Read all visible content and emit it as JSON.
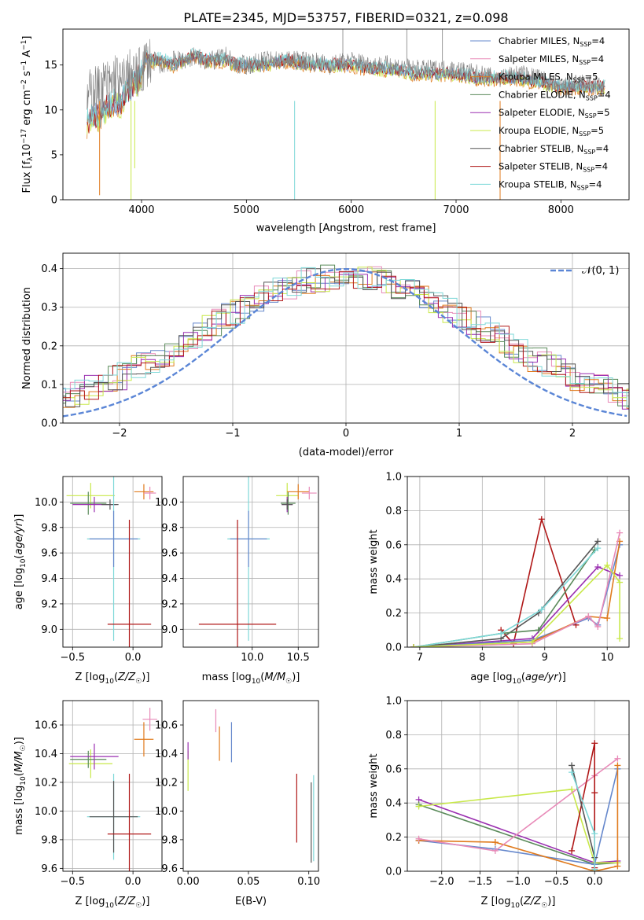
{
  "title": "PLATE=2345, MJD=53757, FIBERID=0321, z=0.098",
  "colors": {
    "chabrier_miles": "#6688cc",
    "salpeter_miles": "#e88ab8",
    "kroupa_miles": "#e07b1e",
    "chabrier_elodie": "#5a8a5a",
    "salpeter_elodie": "#9a2fb0",
    "kroupa_elodie": "#c8e84a",
    "chabrier_stelib": "#555555",
    "salpeter_stelib": "#b01818",
    "kroupa_stelib": "#7ed8d8",
    "normal_curve": "#5b86d6",
    "spectrum_gray": "#808080"
  },
  "chart_data": [
    {
      "id": "spectrum",
      "type": "line",
      "xlabel": "wavelength [Angstrom, rest frame]",
      "ylabel_parts": [
        "Flux [f",
        "λ",
        "10",
        "−17",
        " erg cm",
        "−2",
        " s",
        "−1",
        " A",
        "−1",
        "]"
      ],
      "xlim": [
        3250,
        8650
      ],
      "ylim": [
        0,
        19
      ],
      "xticks": [
        4000,
        5000,
        6000,
        7000,
        8000
      ],
      "yticks": [
        0,
        5,
        10,
        15
      ],
      "grid": false,
      "legend_position": "top-right",
      "legend": [
        {
          "base": "Chabrier MILES, N",
          "n": "4",
          "color_key": "chabrier_miles"
        },
        {
          "base": "Salpeter MILES, N",
          "n": "4",
          "color_key": "salpeter_miles"
        },
        {
          "base": "Kroupa MILES, N",
          "n": "5",
          "color_key": "kroupa_miles"
        },
        {
          "base": "Chabrier ELODIE, N",
          "n": "4",
          "color_key": "chabrier_elodie"
        },
        {
          "base": "Salpeter ELODIE, N",
          "n": "5",
          "color_key": "salpeter_elodie"
        },
        {
          "base": "Kroupa ELODIE, N",
          "n": "5",
          "color_key": "kroupa_elodie"
        },
        {
          "base": "Chabrier STELIB, N",
          "n": "4",
          "color_key": "chabrier_stelib"
        },
        {
          "base": "Salpeter STELIB, N",
          "n": "4",
          "color_key": "salpeter_stelib"
        },
        {
          "base": "Kroupa STELIB, N",
          "n": "4",
          "color_key": "kroupa_stelib"
        }
      ],
      "legend_sub": "SSP",
      "series": [
        {
          "name": "data",
          "color_key": "spectrum_gray",
          "x": [
            3500,
            3550,
            3600,
            3650,
            3700,
            3750,
            3800,
            3850,
            3900,
            3950,
            4000,
            4050,
            4100,
            4200,
            4300,
            4400,
            4500,
            4600,
            4700,
            4800,
            4900,
            5000,
            5200,
            5400,
            5600,
            5800,
            6000,
            6200,
            6400,
            6600,
            6800,
            7000,
            7200,
            7400,
            7600,
            7800,
            8000,
            8200,
            8400
          ],
          "y": [
            11.5,
            12.5,
            12.0,
            13.0,
            12.5,
            14.0,
            12.5,
            13.5,
            14.0,
            13.5,
            14.5,
            15.5,
            15.5,
            15.0,
            15.5,
            15.5,
            16.0,
            15.5,
            15.5,
            16.0,
            15.0,
            15.0,
            15.5,
            15.5,
            15.5,
            15.0,
            15.5,
            15.0,
            15.0,
            14.5,
            14.5,
            14.5,
            14.0,
            13.5,
            14.0,
            13.5,
            12.5,
            13.0,
            12.5
          ]
        },
        {
          "name": "model",
          "color_key": "kroupa_stelib",
          "x": [
            3500,
            3550,
            3600,
            3650,
            3700,
            3750,
            3800,
            3850,
            3900,
            3950,
            4000,
            4050,
            4100,
            4200,
            4300,
            4400,
            4500,
            4600,
            4700,
            4800,
            4900,
            5000,
            5200,
            5400,
            5600,
            5800,
            6000,
            6200,
            6400,
            6600,
            6800,
            7000,
            7200,
            7400,
            7600,
            7800,
            8000,
            8200,
            8400
          ],
          "y": [
            8.5,
            9.5,
            9.0,
            10.0,
            10.5,
            11.0,
            10.5,
            12.0,
            12.5,
            13.0,
            14.0,
            16.0,
            15.5,
            15.5,
            15.0,
            15.5,
            16.0,
            15.5,
            15.5,
            15.5,
            15.0,
            15.0,
            15.0,
            15.5,
            15.0,
            15.0,
            15.0,
            14.5,
            14.5,
            14.0,
            14.0,
            14.0,
            13.5,
            13.5,
            13.5,
            13.0,
            12.5,
            12.5,
            12.5
          ]
        }
      ]
    },
    {
      "id": "residuals",
      "type": "line",
      "xlabel": "(data-model)/error",
      "ylabel": "Normed distribution",
      "xlim": [
        -2.5,
        2.5
      ],
      "ylim": [
        0,
        0.44
      ],
      "xticks": [
        -2,
        -1,
        0,
        1,
        2
      ],
      "xticklabels": [
        "−2",
        "−1",
        "0",
        "1",
        "2"
      ],
      "yticks": [
        0.0,
        0.1,
        0.2,
        0.3,
        0.4
      ],
      "yticklabels": [
        "0.0",
        "0.1",
        "0.2",
        "0.3",
        "0.4"
      ],
      "grid": true,
      "legend_position": "top-right",
      "legend_label": "𝒩(0, 1)",
      "series": [
        {
          "name": "𝒩(0, 1)",
          "color_key": "normal_curve",
          "mean": 0,
          "sigma": 1
        }
      ]
    },
    {
      "id": "age_vs_Z",
      "type": "scatter",
      "xlabel": "Z [log10(Z/Z☉)]",
      "ylabel": "age [log10(age/yr)]",
      "xlim": [
        -0.58,
        0.24
      ],
      "ylim": [
        8.86,
        10.2
      ],
      "xticks": [
        -0.5,
        0.0
      ],
      "xticklabels": [
        "−0.5",
        "0.0"
      ],
      "yticks": [
        9.0,
        9.2,
        9.4,
        9.6,
        9.8,
        10.0
      ],
      "yticklabels": [
        "9.0",
        "9.2",
        "9.4",
        "9.6",
        "9.8",
        "10.0"
      ],
      "grid": true,
      "errorbars": [
        {
          "color_key": "kroupa_elodie",
          "x": -0.35,
          "y": 10.05,
          "xerr": 0.2,
          "yerr": 0.1
        },
        {
          "color_key": "chabrier_elodie",
          "x": -0.37,
          "y": 9.99,
          "xerr": 0.15,
          "yerr": 0.09
        },
        {
          "color_key": "salpeter_elodie",
          "x": -0.32,
          "y": 9.98,
          "xerr": 0.18,
          "yerr": 0.06
        },
        {
          "color_key": "chabrier_stelib",
          "x": -0.19,
          "y": 9.98,
          "xerr": 0.07,
          "yerr": 0.04
        },
        {
          "color_key": "kroupa_miles",
          "x": 0.09,
          "y": 10.08,
          "xerr": 0.08,
          "yerr": 0.06
        },
        {
          "color_key": "salpeter_miles",
          "x": 0.14,
          "y": 10.07,
          "xerr": 0.05,
          "yerr": 0.05
        },
        {
          "color_key": "kroupa_stelib",
          "x": -0.16,
          "y": 9.71,
          "xerr": 0.22,
          "yerr": 0.8
        },
        {
          "color_key": "chabrier_miles",
          "x": -0.16,
          "y": 9.71,
          "xerr": 0.2,
          "yerr": 0.22
        },
        {
          "color_key": "salpeter_stelib",
          "x": -0.03,
          "y": 9.04,
          "xerr": 0.18,
          "yerr": 0.82
        }
      ]
    },
    {
      "id": "age_vs_mass",
      "type": "scatter",
      "xlabel": "mass [log10(M/M☉)]",
      "ylabel": "",
      "xlim": [
        9.25,
        10.72
      ],
      "ylim": [
        8.86,
        10.2
      ],
      "xticks": [
        10.0,
        10.5
      ],
      "xticklabels": [
        "10.0",
        "10.5"
      ],
      "yticks": [
        9.0,
        9.2,
        9.4,
        9.6,
        9.8,
        10.0
      ],
      "yticklabels": [
        "9.0",
        "9.2",
        "9.4",
        "9.6",
        "9.8",
        "10.0"
      ],
      "grid": true,
      "errorbars": [
        {
          "color_key": "kroupa_elodie",
          "x": 10.38,
          "y": 10.05,
          "xerr": 0.12,
          "yerr": 0.1
        },
        {
          "color_key": "chabrier_elodie",
          "x": 10.39,
          "y": 9.99,
          "xerr": 0.08,
          "yerr": 0.09
        },
        {
          "color_key": "salpeter_elodie",
          "x": 10.38,
          "y": 9.98,
          "xerr": 0.06,
          "yerr": 0.06
        },
        {
          "color_key": "chabrier_stelib",
          "x": 10.38,
          "y": 9.98,
          "xerr": 0.06,
          "yerr": 0.04
        },
        {
          "color_key": "kroupa_miles",
          "x": 10.5,
          "y": 10.08,
          "xerr": 0.12,
          "yerr": 0.06
        },
        {
          "color_key": "salpeter_miles",
          "x": 10.62,
          "y": 10.07,
          "xerr": 0.08,
          "yerr": 0.05
        },
        {
          "color_key": "kroupa_stelib",
          "x": 9.96,
          "y": 9.71,
          "xerr": 0.23,
          "yerr": 0.8
        },
        {
          "color_key": "chabrier_miles",
          "x": 9.96,
          "y": 9.71,
          "xerr": 0.2,
          "yerr": 0.22
        },
        {
          "color_key": "salpeter_stelib",
          "x": 9.84,
          "y": 9.04,
          "xerr": 0.42,
          "yerr": 0.82
        }
      ]
    },
    {
      "id": "massweight_vs_age",
      "type": "line",
      "xlabel": "age [log10(age/yr)]",
      "ylabel": "mass weight",
      "xlim": [
        6.8,
        10.35
      ],
      "ylim": [
        0,
        1
      ],
      "xticks": [
        7,
        8,
        9,
        10
      ],
      "xticklabels": [
        "7",
        "8",
        "9",
        "10"
      ],
      "yticks": [
        0.0,
        0.2,
        0.4,
        0.6,
        0.8,
        1.0
      ],
      "yticklabels": [
        "0.0",
        "0.2",
        "0.4",
        "0.6",
        "0.8",
        "1.0"
      ],
      "grid": true,
      "series": [
        {
          "color_key": "salpeter_stelib",
          "x": [
            8.3,
            8.5,
            8.95,
            9.5
          ],
          "y": [
            0.1,
            0.02,
            0.75,
            0.13
          ]
        },
        {
          "color_key": "salpeter_elodie",
          "x": [
            6.9,
            8.8,
            9.85,
            10.2
          ],
          "y": [
            0.0,
            0.05,
            0.47,
            0.42
          ]
        },
        {
          "color_key": "chabrier_stelib",
          "x": [
            6.9,
            8.3,
            8.9,
            9.85
          ],
          "y": [
            0.0,
            0.05,
            0.2,
            0.62
          ]
        },
        {
          "color_key": "chabrier_elodie",
          "x": [
            6.9,
            8.3,
            8.9,
            9.8
          ],
          "y": [
            0.0,
            0.08,
            0.1,
            0.57
          ]
        },
        {
          "color_key": "kroupa_stelib",
          "x": [
            6.9,
            8.3,
            8.95,
            9.85
          ],
          "y": [
            0.0,
            0.08,
            0.22,
            0.58
          ]
        },
        {
          "color_key": "chabrier_miles",
          "x": [
            6.9,
            8.8,
            9.7,
            9.85,
            10.2
          ],
          "y": [
            0.0,
            0.04,
            0.17,
            0.13,
            0.6
          ]
        },
        {
          "color_key": "kroupa_miles",
          "x": [
            6.9,
            8.8,
            9.7,
            10.0,
            10.2
          ],
          "y": [
            0.0,
            0.03,
            0.18,
            0.17,
            0.62
          ]
        },
        {
          "color_key": "salpeter_miles",
          "x": [
            6.9,
            8.8,
            9.7,
            9.85,
            10.2
          ],
          "y": [
            0.0,
            0.02,
            0.18,
            0.12,
            0.67
          ]
        },
        {
          "color_key": "kroupa_elodie",
          "x": [
            6.9,
            8.8,
            10.0,
            10.2,
            10.2
          ],
          "y": [
            0.0,
            0.03,
            0.48,
            0.38,
            0.05
          ]
        }
      ]
    },
    {
      "id": "mass_vs_Z",
      "type": "scatter",
      "xlabel": "Z [log10(Z/Z☉)]",
      "ylabel": "mass [log10(M/M☉)]",
      "xlim": [
        -0.58,
        0.24
      ],
      "ylim": [
        9.58,
        10.77
      ],
      "xticks": [
        -0.5,
        0.0
      ],
      "xticklabels": [
        "−0.5",
        "0.0"
      ],
      "yticks": [
        9.6,
        9.8,
        10.0,
        10.2,
        10.4,
        10.6
      ],
      "yticklabels": [
        "9.6",
        "9.8",
        "10.0",
        "10.2",
        "10.4",
        "10.6"
      ],
      "grid": true,
      "errorbars": [
        {
          "color_key": "kroupa_elodie",
          "x": -0.35,
          "y": 10.33,
          "xerr": 0.18,
          "yerr": 0.1
        },
        {
          "color_key": "chabrier_elodie",
          "x": -0.37,
          "y": 10.36,
          "xerr": 0.15,
          "yerr": 0.06
        },
        {
          "color_key": "salpeter_elodie",
          "x": -0.32,
          "y": 10.38,
          "xerr": 0.2,
          "yerr": 0.09
        },
        {
          "color_key": "kroupa_miles",
          "x": 0.09,
          "y": 10.5,
          "xerr": 0.08,
          "yerr": 0.12
        },
        {
          "color_key": "salpeter_miles",
          "x": 0.14,
          "y": 10.64,
          "xerr": 0.06,
          "yerr": 0.08
        },
        {
          "color_key": "kroupa_stelib",
          "x": -0.16,
          "y": 9.96,
          "xerr": 0.22,
          "yerr": 0.3
        },
        {
          "color_key": "chabrier_stelib",
          "x": -0.16,
          "y": 9.96,
          "xerr": 0.2,
          "yerr": 0.25
        },
        {
          "color_key": "salpeter_stelib",
          "x": -0.03,
          "y": 9.84,
          "xerr": 0.18,
          "yerr": 0.42
        }
      ]
    },
    {
      "id": "mass_vs_ebv",
      "type": "scatter",
      "xlabel": "E(B-V)",
      "ylabel": "",
      "xlim": [
        -0.004,
        0.108
      ],
      "ylim": [
        9.58,
        10.77
      ],
      "xticks": [
        0.0,
        0.05,
        0.1
      ],
      "xticklabels": [
        "0.00",
        "0.05",
        "0.10"
      ],
      "yticks": [
        9.6,
        9.8,
        10.0,
        10.2,
        10.4,
        10.6
      ],
      "yticklabels": [
        "9.6",
        "9.8",
        "10.0",
        "10.2",
        "10.4",
        "10.6"
      ],
      "grid": false,
      "errorbars": [
        {
          "color_key": "kroupa_elodie",
          "x": 0.0,
          "y": 10.28,
          "xerr": 0,
          "yerr": 0.14
        },
        {
          "color_key": "salpeter_elodie",
          "x": 0.0,
          "y": 10.42,
          "xerr": 0,
          "yerr": 0.06
        },
        {
          "color_key": "salpeter_miles",
          "x": 0.023,
          "y": 10.63,
          "xerr": 0,
          "yerr": 0.08
        },
        {
          "color_key": "kroupa_miles",
          "x": 0.026,
          "y": 10.47,
          "xerr": 0,
          "yerr": 0.12
        },
        {
          "color_key": "chabrier_miles",
          "x": 0.036,
          "y": 10.48,
          "xerr": 0,
          "yerr": 0.14
        },
        {
          "color_key": "salpeter_stelib",
          "x": 0.09,
          "y": 10.02,
          "xerr": 0,
          "yerr": 0.24
        },
        {
          "color_key": "chabrier_stelib",
          "x": 0.102,
          "y": 9.92,
          "xerr": 0,
          "yerr": 0.28
        },
        {
          "color_key": "kroupa_stelib",
          "x": 0.104,
          "y": 9.95,
          "xerr": 0,
          "yerr": 0.3
        }
      ]
    },
    {
      "id": "massweight_vs_Z",
      "type": "line",
      "xlabel": "Z [log10(Z/Z☉)]",
      "ylabel": "mass weight",
      "xlim": [
        -2.45,
        0.45
      ],
      "ylim": [
        0,
        1
      ],
      "xticks": [
        -2.0,
        -1.5,
        -1.0,
        -0.5,
        0.0
      ],
      "xticklabels": [
        "−2.0",
        "−1.5",
        "−1.0",
        "−0.5",
        "0.0"
      ],
      "yticks": [
        0.0,
        0.2,
        0.4,
        0.6,
        0.8,
        1.0
      ],
      "yticklabels": [
        "0.0",
        "0.2",
        "0.4",
        "0.6",
        "0.8",
        "1.0"
      ],
      "grid": true,
      "series": [
        {
          "color_key": "salpeter_elodie",
          "x": [
            -2.3,
            0.0,
            0.3
          ],
          "y": [
            0.42,
            0.05,
            0.06
          ]
        },
        {
          "color_key": "chabrier_elodie",
          "x": [
            -2.3,
            0.0,
            0.3
          ],
          "y": [
            0.39,
            0.04,
            0.05
          ]
        },
        {
          "color_key": "kroupa_elodie",
          "x": [
            -2.3,
            -0.3,
            0.0,
            0.3
          ],
          "y": [
            0.38,
            0.48,
            0.05,
            0.05
          ]
        },
        {
          "color_key": "chabrier_miles",
          "x": [
            -2.3,
            -1.3,
            0.0,
            0.3
          ],
          "y": [
            0.18,
            0.13,
            0.04,
            0.6
          ]
        },
        {
          "color_key": "kroupa_miles",
          "x": [
            -2.3,
            -1.3,
            -1.3,
            0.0,
            0.3,
            0.3
          ],
          "y": [
            0.18,
            0.17,
            0.17,
            0.0,
            0.03,
            0.62
          ]
        },
        {
          "color_key": "salpeter_miles",
          "x": [
            -2.3,
            -1.3,
            0.0,
            0.3
          ],
          "y": [
            0.19,
            0.12,
            0.56,
            0.66
          ]
        },
        {
          "color_key": "salpeter_stelib",
          "x": [
            -0.3,
            0.0,
            0.0,
            0.0
          ],
          "y": [
            0.12,
            0.75,
            0.46,
            0.02
          ]
        },
        {
          "color_key": "chabrier_stelib",
          "x": [
            -0.3,
            0.0,
            0.0
          ],
          "y": [
            0.62,
            0.08,
            0.01
          ]
        },
        {
          "color_key": "kroupa_stelib",
          "x": [
            -0.3,
            0.0,
            0.0
          ],
          "y": [
            0.58,
            0.22,
            0.01
          ]
        }
      ]
    }
  ]
}
